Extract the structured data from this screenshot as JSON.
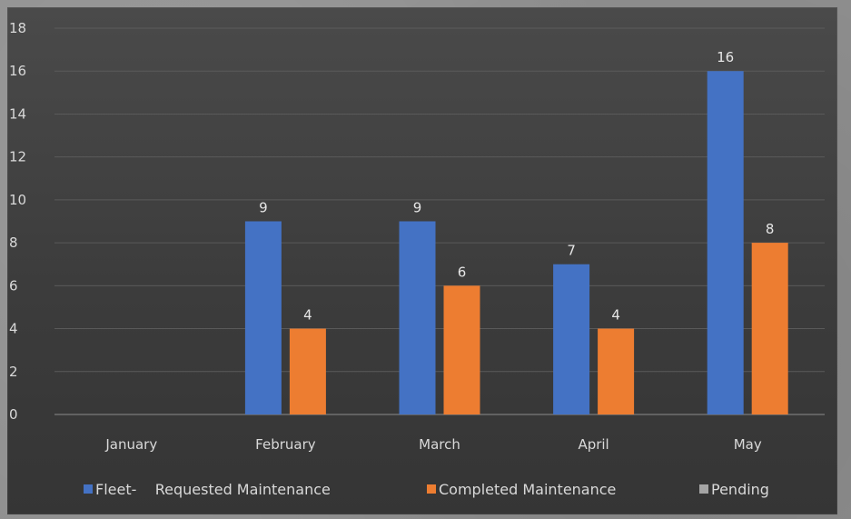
{
  "chart_data": {
    "type": "bar",
    "categories": [
      "January",
      "February",
      "March",
      "April",
      "May"
    ],
    "series": [
      {
        "name": "Fleet-    Requested Maintenance",
        "values": [
          null,
          9,
          9,
          7,
          16
        ],
        "color": "#4472c4"
      },
      {
        "name": "Completed Maintenance",
        "values": [
          null,
          4,
          6,
          4,
          8
        ],
        "color": "#ed7d31"
      },
      {
        "name": "Pending",
        "values": [
          null,
          null,
          null,
          null,
          null
        ],
        "color": "#a5a5a5"
      }
    ],
    "ylim": [
      0,
      18
    ],
    "yticks": [
      0,
      2,
      4,
      6,
      8,
      10,
      12,
      14,
      16,
      18
    ],
    "grid": true,
    "legend_position": "bottom",
    "data_labels": true
  }
}
